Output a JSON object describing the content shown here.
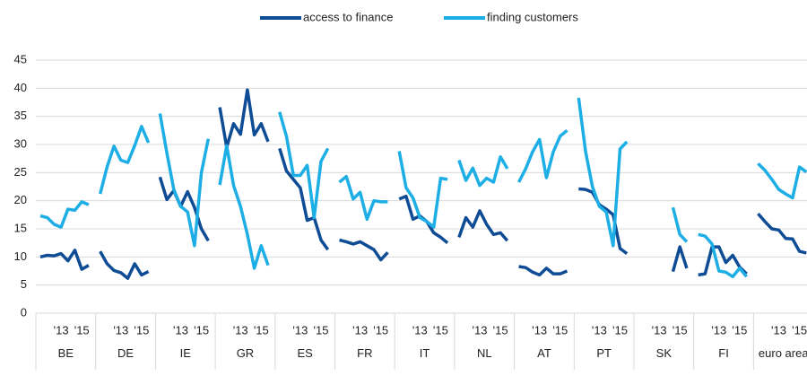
{
  "chart_data": {
    "type": "line",
    "groups": [
      "BE",
      "DE",
      "IE",
      "GR",
      "ES",
      "FR",
      "IT",
      "NL",
      "AT",
      "PT",
      "SK",
      "FI",
      "euro area"
    ],
    "x_labels": [
      null,
      null,
      null,
      "'13",
      null,
      null,
      "'15",
      null
    ],
    "ylim": [
      0,
      45
    ],
    "yticks": [
      0,
      5,
      10,
      15,
      20,
      25,
      30,
      35,
      40,
      45
    ],
    "grid": true,
    "legend": "top",
    "series": [
      {
        "name": "access to finance",
        "color": "#0f4c96",
        "values": [
          [
            10,
            10.3,
            10.2,
            10.6,
            9.3,
            11.2,
            7.8,
            8.5
          ],
          [
            11,
            8.8,
            7.6,
            7.2,
            6.2,
            8.8,
            6.8,
            7.4
          ],
          [
            24.2,
            20.2,
            21.8,
            19,
            21.6,
            18.8,
            15,
            12.9
          ],
          [
            36.6,
            29.5,
            33.7,
            31.8,
            39.7,
            31.7,
            33.7,
            30.5
          ],
          [
            29.3,
            25.3,
            23.8,
            22.3,
            16.5,
            17,
            13,
            11.3
          ],
          [
            13,
            12.7,
            12.3,
            12.7,
            12,
            11.3,
            9.5,
            10.8
          ],
          [
            20.3,
            20.8,
            16.7,
            17.3,
            16.3,
            14.3,
            13.5,
            12.5
          ],
          [
            13.5,
            17,
            15.3,
            18.2,
            15.8,
            14,
            14.3,
            12.9
          ],
          [
            8.3,
            8.1,
            7.3,
            6.8,
            8,
            7,
            7,
            7.5
          ],
          [
            22.1,
            22,
            21.5,
            19.3,
            18.5,
            17.5,
            11.5,
            10.6
          ],
          [
            null,
            null,
            null,
            null,
            null,
            7.4,
            11.8,
            8
          ],
          [
            6.8,
            7,
            11.8,
            11.8,
            9,
            10.3,
            8.2,
            7
          ],
          [
            17.7,
            16.3,
            15,
            14.8,
            13.3,
            13.2,
            11,
            10.7
          ]
        ]
      },
      {
        "name": "finding customers",
        "color": "#1eaee6",
        "values": [
          [
            17.3,
            17,
            15.8,
            15.3,
            18.5,
            18.3,
            19.8,
            19.3
          ],
          [
            21.2,
            26,
            29.7,
            27.2,
            26.8,
            29.8,
            33.2,
            30.3
          ],
          [
            35.5,
            28.5,
            22,
            19,
            18,
            12,
            25,
            31
          ],
          [
            22.8,
            29.8,
            22.7,
            19,
            14,
            8,
            12,
            8.5
          ],
          [
            35.8,
            31.4,
            24.5,
            24.5,
            26.3,
            17,
            27,
            29.3
          ],
          [
            23.3,
            24.3,
            20.3,
            21.5,
            16.7,
            20,
            19.8,
            19.8
          ],
          [
            28.8,
            22.3,
            20.5,
            17,
            16.3,
            15.3,
            24,
            23.8
          ],
          [
            27.2,
            23.6,
            25.8,
            22.7,
            24,
            23.3,
            27.8,
            25.7
          ],
          [
            23.3,
            25.7,
            28.7,
            30.9,
            24.1,
            28.7,
            31.5,
            32.5
          ],
          [
            38.3,
            28.8,
            22.5,
            19,
            18,
            12,
            29.2,
            30.5
          ],
          [
            null,
            null,
            null,
            null,
            null,
            18.8,
            14,
            12.7
          ],
          [
            14,
            13.7,
            12.3,
            7.5,
            7.3,
            6.5,
            8,
            6.5
          ],
          [
            26.6,
            25.4,
            23.8,
            22,
            21.2,
            20.5,
            26,
            25.1
          ]
        ]
      }
    ]
  }
}
